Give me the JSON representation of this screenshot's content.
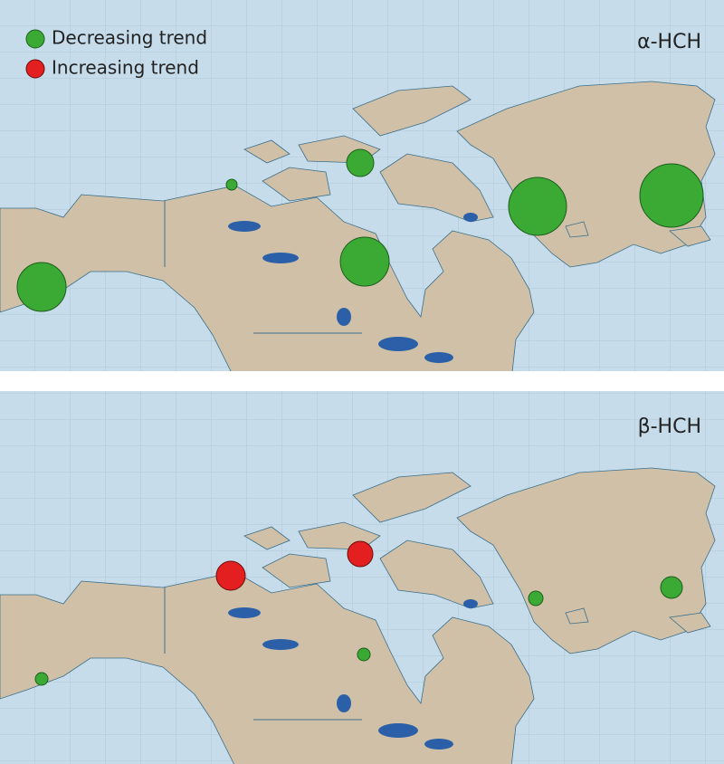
{
  "legend": {
    "items": [
      {
        "label": "Decreasing trend"
      },
      {
        "label": "Increasing trend"
      }
    ]
  },
  "panels": [
    {
      "title": "α-HCH"
    },
    {
      "title": "β-HCH"
    }
  ]
}
